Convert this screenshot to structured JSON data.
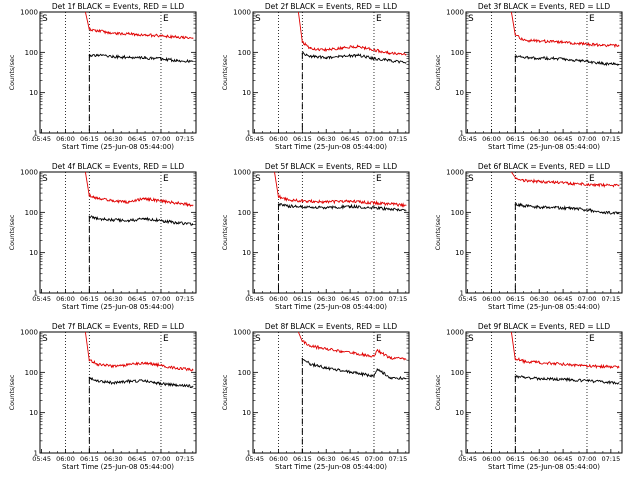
{
  "figure": {
    "ytick_labels": [
      "1",
      "10",
      "100",
      "1000"
    ],
    "xtick_labels": [
      "05:45",
      "06:00",
      "06:15",
      "06:30",
      "06:45",
      "07:00",
      "07:15"
    ],
    "start_marker": "S",
    "end_marker": "E",
    "colors": {
      "events": "#000000",
      "lld": "#e00000",
      "axes": "#000000"
    }
  },
  "chart_data": [
    {
      "type": "line",
      "title": "Det 1f BLACK = Events, RED = LLD",
      "xlabel": "Start Time (25-Jun-08 05:44:00)",
      "ylabel": "Counts/sec",
      "yscale": "log",
      "ylim": [
        1,
        1000
      ],
      "xlim": [
        "05:44",
        "07:22"
      ],
      "grid": "dotted verticals at 06:00, 06:15, 07:00",
      "x": [
        "06:15",
        "06:20",
        "06:30",
        "06:40",
        "06:50",
        "07:00",
        "07:10",
        "07:20"
      ],
      "series": [
        {
          "name": "Events",
          "values": [
            85,
            85,
            78,
            75,
            72,
            70,
            62,
            60
          ]
        },
        {
          "name": "LLD",
          "values": [
            380,
            340,
            300,
            285,
            270,
            255,
            240,
            225
          ]
        }
      ]
    },
    {
      "type": "line",
      "title": "Det 2f BLACK = Events, RED = LLD",
      "xlabel": "Start Time (25-Jun-08 05:44:00)",
      "ylabel": "Counts/sec",
      "yscale": "log",
      "ylim": [
        1,
        1000
      ],
      "xlim": [
        "05:44",
        "07:22"
      ],
      "grid": "dotted verticals at 06:00, 06:15, 07:00",
      "x": [
        "06:15",
        "06:20",
        "06:30",
        "06:40",
        "06:50",
        "07:00",
        "07:10",
        "07:20"
      ],
      "series": [
        {
          "name": "Events",
          "values": [
            95,
            80,
            75,
            80,
            85,
            70,
            62,
            55
          ]
        },
        {
          "name": "LLD",
          "values": [
            180,
            125,
            115,
            130,
            140,
            115,
            95,
            88
          ]
        }
      ]
    },
    {
      "type": "line",
      "title": "Det 3f BLACK = Events, RED = LLD",
      "xlabel": "Start Time (25-Jun-08 05:44:00)",
      "ylabel": "Counts/sec",
      "yscale": "log",
      "ylim": [
        1,
        1000
      ],
      "xlim": [
        "05:44",
        "07:22"
      ],
      "grid": "dotted verticals at 06:00, 06:15, 07:00",
      "x": [
        "06:15",
        "06:20",
        "06:30",
        "06:40",
        "06:50",
        "07:00",
        "07:10",
        "07:20"
      ],
      "series": [
        {
          "name": "Events",
          "values": [
            80,
            75,
            72,
            70,
            65,
            60,
            52,
            50
          ]
        },
        {
          "name": "LLD",
          "values": [
            280,
            200,
            190,
            185,
            170,
            160,
            150,
            145
          ]
        }
      ]
    },
    {
      "type": "line",
      "title": "Det 4f BLACK = Events, RED = LLD",
      "xlabel": "Start Time (25-Jun-08 05:44:00)",
      "ylabel": "Counts/sec",
      "yscale": "log",
      "ylim": [
        1,
        1000
      ],
      "xlim": [
        "05:44",
        "07:22"
      ],
      "grid": "dotted verticals at 06:00, 06:15, 07:00",
      "x": [
        "06:15",
        "06:20",
        "06:30",
        "06:40",
        "06:50",
        "07:00",
        "07:10",
        "07:20"
      ],
      "series": [
        {
          "name": "Events",
          "values": [
            80,
            70,
            65,
            62,
            70,
            62,
            55,
            50
          ]
        },
        {
          "name": "LLD",
          "values": [
            260,
            220,
            190,
            180,
            220,
            190,
            170,
            150
          ]
        }
      ]
    },
    {
      "type": "line",
      "title": "Det 5f BLACK = Events, RED = LLD",
      "xlabel": "Start Time (25-Jun-08 05:44:00)",
      "ylabel": "Counts/sec",
      "yscale": "log",
      "ylim": [
        1,
        1000
      ],
      "xlim": [
        "05:44",
        "07:22"
      ],
      "grid": "dotted verticals at 06:00, 06:15, 07:00",
      "x": [
        "06:00",
        "06:05",
        "06:15",
        "06:30",
        "06:45",
        "07:00",
        "07:10",
        "07:20"
      ],
      "series": [
        {
          "name": "Events",
          "values": [
            160,
            145,
            135,
            130,
            140,
            130,
            120,
            110
          ]
        },
        {
          "name": "LLD",
          "values": [
            250,
            210,
            190,
            180,
            190,
            170,
            160,
            150
          ]
        }
      ]
    },
    {
      "type": "line",
      "title": "Det 6f BLACK = Events, RED = LLD",
      "xlabel": "Start Time (25-Jun-08 05:44:00)",
      "ylabel": "Counts/sec",
      "yscale": "log",
      "ylim": [
        1,
        1000
      ],
      "xlim": [
        "05:44",
        "07:22"
      ],
      "grid": "dotted verticals at 06:00, 06:15, 07:00",
      "x": [
        "06:15",
        "06:20",
        "06:30",
        "06:40",
        "06:50",
        "07:00",
        "07:10",
        "07:20"
      ],
      "series": [
        {
          "name": "Events",
          "values": [
            160,
            145,
            135,
            130,
            125,
            115,
            100,
            95
          ]
        },
        {
          "name": "LLD",
          "values": [
            700,
            620,
            580,
            560,
            520,
            500,
            470,
            460
          ]
        }
      ]
    },
    {
      "type": "line",
      "title": "Det 7f BLACK = Events, RED = LLD",
      "xlabel": "Start Time (25-Jun-08 05:44:00)",
      "ylabel": "Counts/sec",
      "yscale": "log",
      "ylim": [
        1,
        1000
      ],
      "xlim": [
        "05:44",
        "07:22"
      ],
      "grid": "dotted verticals at 06:00, 06:15, 07:00",
      "x": [
        "06:15",
        "06:20",
        "06:30",
        "06:40",
        "06:50",
        "07:00",
        "07:10",
        "07:20"
      ],
      "series": [
        {
          "name": "Events",
          "values": [
            75,
            62,
            55,
            60,
            62,
            52,
            48,
            45
          ]
        },
        {
          "name": "LLD",
          "values": [
            200,
            160,
            140,
            155,
            170,
            150,
            125,
            115
          ]
        }
      ]
    },
    {
      "type": "line",
      "title": "Det 8f BLACK = Events, RED = LLD",
      "xlabel": "Start Time (25-Jun-08 05:44:00)",
      "ylabel": "Counts/sec",
      "yscale": "log",
      "ylim": [
        1,
        1000
      ],
      "xlim": [
        "05:44",
        "07:22"
      ],
      "grid": "dotted verticals at 06:00, 06:15, 07:00",
      "x": [
        "06:15",
        "06:20",
        "06:30",
        "06:40",
        "06:50",
        "07:00",
        "07:02",
        "07:10",
        "07:20"
      ],
      "series": [
        {
          "name": "Events",
          "values": [
            220,
            160,
            130,
            110,
            95,
            80,
            120,
            75,
            70
          ]
        },
        {
          "name": "LLD",
          "values": [
            600,
            450,
            380,
            330,
            290,
            250,
            350,
            230,
            210
          ]
        }
      ]
    },
    {
      "type": "line",
      "title": "Det 9f BLACK = Events, RED = LLD",
      "xlabel": "Start Time (25-Jun-08 05:44:00)",
      "ylabel": "Counts/sec",
      "yscale": "log",
      "ylim": [
        1,
        1000
      ],
      "xlim": [
        "05:44",
        "07:22"
      ],
      "grid": "dotted verticals at 06:00, 06:15, 07:00",
      "x": [
        "06:15",
        "06:20",
        "06:30",
        "06:40",
        "06:50",
        "07:00",
        "07:10",
        "07:20"
      ],
      "series": [
        {
          "name": "Events",
          "values": [
            80,
            75,
            70,
            68,
            65,
            62,
            58,
            55
          ]
        },
        {
          "name": "LLD",
          "values": [
            220,
            190,
            175,
            165,
            155,
            145,
            140,
            135
          ]
        }
      ]
    }
  ]
}
